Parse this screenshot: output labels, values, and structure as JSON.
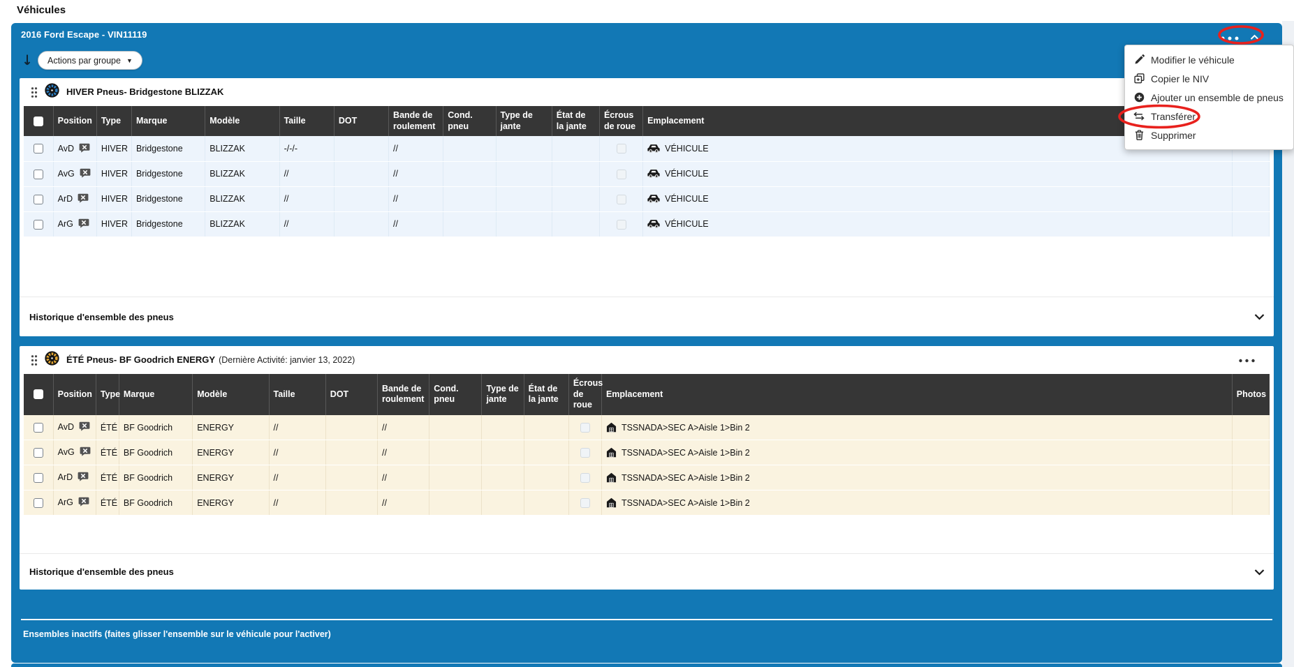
{
  "page": {
    "heading": "Véhicules"
  },
  "vehicle_panel": {
    "title": "2016 Ford Escape - VIN11119",
    "group_actions_label": "Actions par groupe",
    "inactive_sets_label": "Ensembles inactifs (faites glisser l'ensemble sur le véhicule pour l'activer)"
  },
  "context_menu": {
    "items": [
      {
        "label": "Modifier le véhicule",
        "icon": "pencil-icon"
      },
      {
        "label": "Copier le NIV",
        "icon": "copy-icon"
      },
      {
        "label": "Ajouter un ensemble de pneus",
        "icon": "plus-circle-icon"
      },
      {
        "label": "Transférer",
        "icon": "transfer-icon"
      },
      {
        "label": "Supprimer",
        "icon": "trash-icon"
      }
    ],
    "highlighted_item": "Transférer"
  },
  "tire_sets": [
    {
      "title": "HIVER Pneus- Bridgestone BLIZZAK",
      "subtitle": "",
      "icon": "winter-tire-icon",
      "theme": "winter",
      "columns": [
        "",
        "Position",
        "Type",
        "Marque",
        "Modèle",
        "Taille",
        "DOT",
        "Bande de roulement",
        "Cond. pneu",
        "Type de jante",
        "État de la jante",
        "Écrous de roue",
        "Emplacement",
        "Photos"
      ],
      "rows": [
        {
          "position": "AvD",
          "type": "HIVER",
          "marque": "Bridgestone",
          "modele": "BLIZZAK",
          "taille": "-/-/-",
          "dot": "",
          "bande": "//",
          "cond": "",
          "type_jante": "",
          "etat_jante": "",
          "ecrous": "",
          "emplacement": "VÉHICULE",
          "emplacement_icon": "car-icon",
          "photos": ""
        },
        {
          "position": "AvG",
          "type": "HIVER",
          "marque": "Bridgestone",
          "modele": "BLIZZAK",
          "taille": "//",
          "dot": "",
          "bande": "//",
          "cond": "",
          "type_jante": "",
          "etat_jante": "",
          "ecrous": "",
          "emplacement": "VÉHICULE",
          "emplacement_icon": "car-icon",
          "photos": ""
        },
        {
          "position": "ArD",
          "type": "HIVER",
          "marque": "Bridgestone",
          "modele": "BLIZZAK",
          "taille": "//",
          "dot": "",
          "bande": "//",
          "cond": "",
          "type_jante": "",
          "etat_jante": "",
          "ecrous": "",
          "emplacement": "VÉHICULE",
          "emplacement_icon": "car-icon",
          "photos": ""
        },
        {
          "position": "ArG",
          "type": "HIVER",
          "marque": "Bridgestone",
          "modele": "BLIZZAK",
          "taille": "//",
          "dot": "",
          "bande": "//",
          "cond": "",
          "type_jante": "",
          "etat_jante": "",
          "ecrous": "",
          "emplacement": "VÉHICULE",
          "emplacement_icon": "car-icon",
          "photos": ""
        }
      ],
      "history_label": "Historique d'ensemble des pneus"
    },
    {
      "title": "ÉTÉ Pneus- BF Goodrich ENERGY",
      "subtitle": "(Dernière Activité: janvier 13, 2022)",
      "icon": "summer-tire-icon",
      "theme": "summer",
      "columns": [
        "",
        "Position",
        "Type",
        "Marque",
        "Modèle",
        "Taille",
        "DOT",
        "Bande de roulement",
        "Cond. pneu",
        "Type de jante",
        "État de la jante",
        "Écrous de roue",
        "Emplacement",
        "Photos"
      ],
      "rows": [
        {
          "position": "AvD",
          "type": "ÉTÉ",
          "marque": "BF Goodrich",
          "modele": "ENERGY",
          "taille": "//",
          "dot": "",
          "bande": "//",
          "cond": "",
          "type_jante": "",
          "etat_jante": "",
          "ecrous": "",
          "emplacement": "TSSNADA>SEC A>Aisle 1>Bin 2",
          "emplacement_icon": "warehouse-icon",
          "photos": ""
        },
        {
          "position": "AvG",
          "type": "ÉTÉ",
          "marque": "BF Goodrich",
          "modele": "ENERGY",
          "taille": "//",
          "dot": "",
          "bande": "//",
          "cond": "",
          "type_jante": "",
          "etat_jante": "",
          "ecrous": "",
          "emplacement": "TSSNADA>SEC A>Aisle 1>Bin 2",
          "emplacement_icon": "warehouse-icon",
          "photos": ""
        },
        {
          "position": "ArD",
          "type": "ÉTÉ",
          "marque": "BF Goodrich",
          "modele": "ENERGY",
          "taille": "//",
          "dot": "",
          "bande": "//",
          "cond": "",
          "type_jante": "",
          "etat_jante": "",
          "ecrous": "",
          "emplacement": "TSSNADA>SEC A>Aisle 1>Bin 2",
          "emplacement_icon": "warehouse-icon",
          "photos": ""
        },
        {
          "position": "ArG",
          "type": "ÉTÉ",
          "marque": "BF Goodrich",
          "modele": "ENERGY",
          "taille": "//",
          "dot": "",
          "bande": "//",
          "cond": "",
          "type_jante": "",
          "etat_jante": "",
          "ecrous": "",
          "emplacement": "TSSNADA>SEC A>Aisle 1>Bin 2",
          "emplacement_icon": "warehouse-icon",
          "photos": ""
        }
      ],
      "history_label": "Historique d'ensemble des pneus"
    }
  ],
  "colors": {
    "panel_blue": "#1278b5",
    "table_header_dark": "#363636",
    "winter_row": "#edf4fc",
    "summer_row": "#faf3e0",
    "annotation_red": "#e8211d",
    "winter_icon_accent": "#2a7cc0",
    "summer_icon_accent": "#e3a52f"
  }
}
